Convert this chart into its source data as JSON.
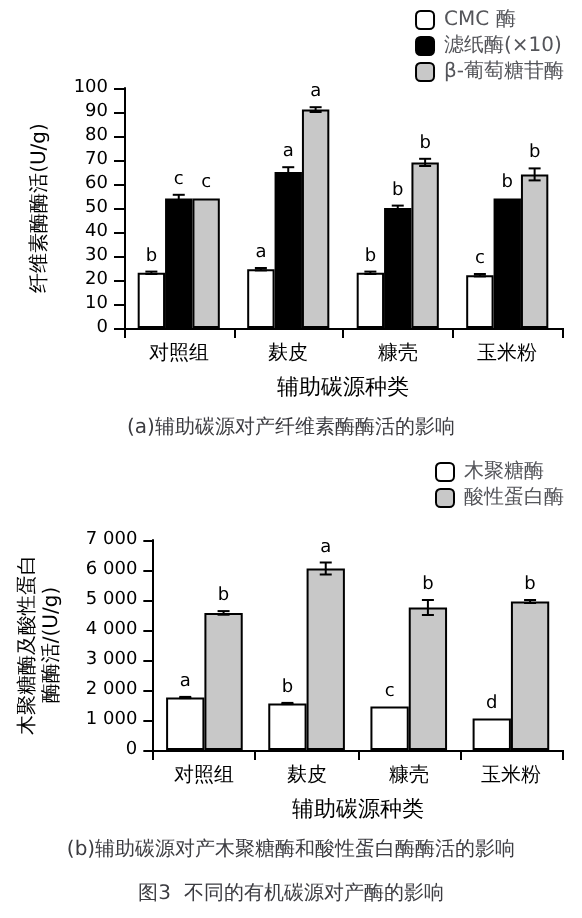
{
  "chart_data": [
    {
      "type": "bar",
      "title": "(a)辅助碳源对产纤维素酶酶活的影响",
      "xlabel": "辅助碳源种类",
      "ylabel": "纤维素酶酶活(U/g)",
      "categories": [
        "对照组",
        "麸皮",
        "糠壳",
        "玉米粉"
      ],
      "series": [
        {
          "name": "CMC 酶",
          "color": "#ffffff",
          "values": [
            23,
            24.5,
            23,
            22
          ],
          "errors": [
            0.5,
            0.5,
            0.5,
            0.5
          ],
          "value_labels": [
            "b",
            "a",
            "b",
            "c"
          ]
        },
        {
          "name": "滤纸酶(×10)",
          "color": "#000000",
          "values": [
            54,
            65,
            50,
            54
          ],
          "errors": [
            1.5,
            2,
            1,
            null
          ],
          "value_labels": [
            "c",
            "a",
            "b",
            "b"
          ]
        },
        {
          "name": "β-葡萄糖苷酶",
          "color": "#c8c8c8",
          "values": [
            54,
            91,
            69,
            64
          ],
          "errors": [
            null,
            1,
            1.5,
            2.5
          ],
          "value_labels": [
            "c",
            "a",
            "b",
            "b"
          ]
        }
      ],
      "ylim": [
        0,
        100
      ],
      "yticks": [
        0,
        10,
        20,
        30,
        40,
        50,
        60,
        70,
        80,
        90,
        100
      ],
      "grid": false,
      "legend": "top right"
    },
    {
      "type": "bar",
      "title": "(b)辅助碳源对产木聚糖酶和酸性蛋白酶酶活的影响",
      "xlabel": "辅助碳源种类",
      "ylabel": "木聚糖酶及酸性蛋白酶酶活/(U/g)",
      "categories": [
        "对照组",
        "麸皮",
        "糠壳",
        "玉米粉"
      ],
      "series": [
        {
          "name": "木聚糖酶",
          "color": "#ffffff",
          "values": [
            1750,
            1550,
            1450,
            1050
          ],
          "errors": [
            20,
            20,
            null,
            null
          ],
          "value_labels": [
            "a",
            "b",
            "c",
            "d"
          ]
        },
        {
          "name": "酸性蛋白酶",
          "color": "#c8c8c8",
          "values": [
            4570,
            6050,
            4750,
            4950
          ],
          "errors": [
            60,
            200,
            250,
            50
          ],
          "value_labels": [
            "b",
            "a",
            "b",
            "b"
          ]
        }
      ],
      "ylim": [
        0,
        7000
      ],
      "yticks": [
        0,
        {
          "value": 1000,
          "label": "1 000"
        },
        {
          "value": 2000,
          "label": "2 000"
        },
        {
          "value": 3000,
          "label": "3 000"
        },
        {
          "value": 4000,
          "label": "4 000"
        },
        {
          "value": 5000,
          "label": "5 000"
        },
        {
          "value": 6000,
          "label": "6 000"
        },
        {
          "value": 7000,
          "label": "7 000"
        }
      ],
      "grid": false,
      "legend": "top right",
      "annotations": [
        "图3  不同的有机碳源对产酶的影响"
      ]
    }
  ]
}
